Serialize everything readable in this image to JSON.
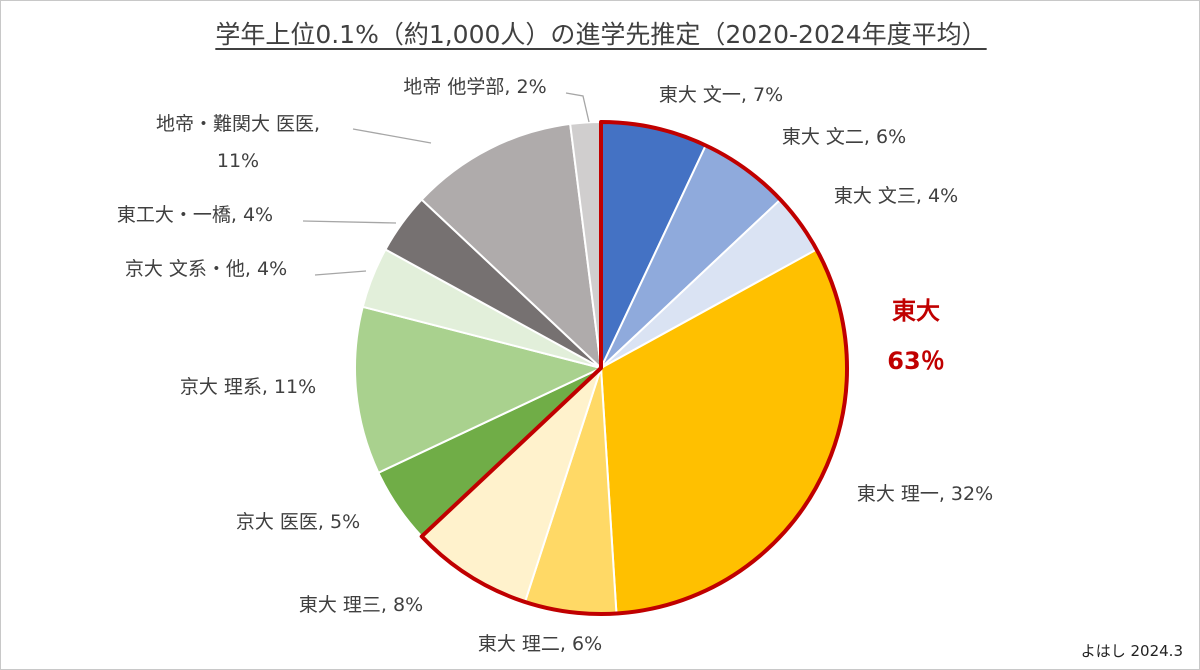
{
  "chart_data": {
    "type": "pie",
    "title": "学年上位0.1%（約1,000人）の進学先推定（2020-2024年度平均）",
    "slices": [
      {
        "category": "東大 文一",
        "value": 7,
        "label": "東大 文一, 7%",
        "color": "#4472c4",
        "group": "todai"
      },
      {
        "category": "東大 文二",
        "value": 6,
        "label": "東大 文二, 6%",
        "color": "#8faadc",
        "group": "todai"
      },
      {
        "category": "東大 文三",
        "value": 4,
        "label": "東大 文三, 4%",
        "color": "#dae3f3",
        "group": "todai"
      },
      {
        "category": "東大 理一",
        "value": 32,
        "label": "東大 理一, 32%",
        "color": "#ffc000",
        "group": "todai"
      },
      {
        "category": "東大 理二",
        "value": 6,
        "label": "東大 理二, 6%",
        "color": "#ffd966",
        "group": "todai"
      },
      {
        "category": "東大 理三",
        "value": 8,
        "label": "東大 理三, 8%",
        "color": "#fff2cc",
        "group": "todai"
      },
      {
        "category": "京大 医医",
        "value": 5,
        "label": "京大 医医, 5%",
        "color": "#70ad47",
        "group": "other"
      },
      {
        "category": "京大 理系",
        "value": 11,
        "label": "京大 理系, 11%",
        "color": "#a9d18e",
        "group": "other"
      },
      {
        "category": "京大 文系・他",
        "value": 4,
        "label": "京大 文系・他, 4%",
        "color": "#e2efda",
        "group": "other"
      },
      {
        "category": "東工大・一橋",
        "value": 4,
        "label": "東工大・一橋, 4%",
        "color": "#767171",
        "group": "other"
      },
      {
        "category": "地帝・難関大 医医",
        "value": 11,
        "label": "地帝・難関大 医医,",
        "label2": "11%",
        "color": "#afabab",
        "group": "other"
      },
      {
        "category": "地帝 他学部",
        "value": 2,
        "label": "地帝 他学部, 2%",
        "color": "#d0cece",
        "group": "other"
      }
    ],
    "highlight": {
      "name": "東大",
      "value": "63％",
      "color": "#c00000"
    }
  },
  "credit": "よはし 2024.3"
}
